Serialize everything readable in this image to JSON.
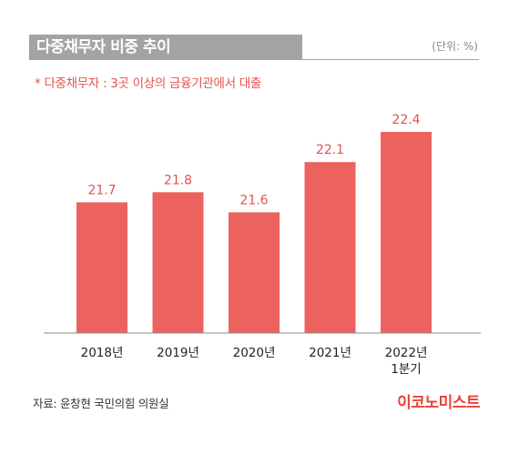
{
  "header": {
    "title": "다중채무자 비중 추이",
    "unit": "(단위: %)"
  },
  "note": "* 다중채무자 : 3곳 이상의 금융기관에서 대출",
  "source": "자료: 윤창현 국민의힘 의원실",
  "brand": "이코노미스트",
  "colors": {
    "bar": "#ec625f",
    "label": "#e4534f",
    "title_bg": "#a3a3a3"
  },
  "chart_data": {
    "type": "bar",
    "categories": [
      "2018년",
      "2019년",
      "2020년",
      "2021년",
      "2022년\n1분기"
    ],
    "values": [
      21.7,
      21.8,
      21.6,
      22.1,
      22.4
    ],
    "value_labels": [
      "21.7",
      "21.8",
      "21.6",
      "22.1",
      "22.4"
    ],
    "title": "다중채무자 비중 추이",
    "xlabel": "",
    "ylabel": "",
    "ylim": [
      20.4,
      22.4
    ],
    "grid": false,
    "legend": "none"
  }
}
